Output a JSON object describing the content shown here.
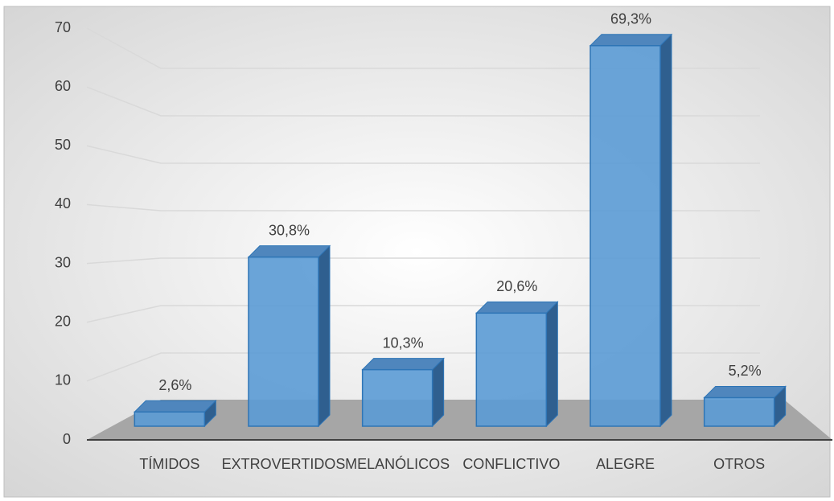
{
  "chart_data": {
    "type": "bar3d",
    "categories": [
      "TÍMIDOS",
      "EXTROVERTIDOS",
      "MELANÓLICOS",
      "CONFLICTIVO",
      "ALEGRE",
      "OTROS"
    ],
    "values": [
      2.6,
      30.8,
      10.3,
      20.6,
      69.3,
      5.2
    ],
    "value_labels": [
      "2,6%",
      "30,8%",
      "10,3%",
      "20,6%",
      "69,3%",
      "5,2%"
    ],
    "color": "#5b9bd5",
    "ylim": [
      0,
      70
    ],
    "yticks": [
      0,
      10,
      20,
      30,
      40,
      50,
      60,
      70
    ],
    "grid": true
  }
}
